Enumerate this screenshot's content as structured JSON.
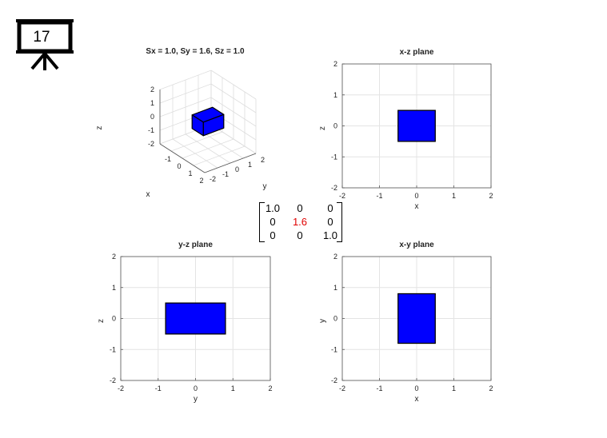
{
  "slide": {
    "number": "17"
  },
  "matrix": {
    "rows": [
      [
        "1.0",
        "0",
        "0"
      ],
      [
        "0",
        "1.6",
        "0"
      ],
      [
        "0",
        "0",
        "1.0"
      ]
    ],
    "highlight": {
      "row": 1,
      "col": 1,
      "color": "#e00000"
    }
  },
  "chart_data": [
    {
      "type": "3d-box",
      "title": "Sx = 1.0, Sy = 1.6, Sz = 1.0",
      "xlabel": "x",
      "ylabel": "y",
      "zlabel": "z",
      "xlim": [
        -2,
        2
      ],
      "ylim": [
        -2,
        2
      ],
      "zlim": [
        -2,
        2
      ],
      "xticks": [
        "-1",
        "0",
        "1",
        "2"
      ],
      "yticks": [
        "-2",
        "-1",
        "0",
        "1",
        "2"
      ],
      "zticks": [
        "2",
        "1",
        "0",
        "-1",
        "-2"
      ],
      "grid": true,
      "box": {
        "x": [
          -0.5,
          0.5
        ],
        "y": [
          -0.8,
          0.8
        ],
        "z": [
          -0.5,
          0.5
        ],
        "color": "#0000ff"
      }
    },
    {
      "type": "rect",
      "title": "x-z plane",
      "xlabel": "x",
      "ylabel": "z",
      "xlim": [
        -2,
        2
      ],
      "ylim": [
        -2,
        2
      ],
      "xticks": [
        "-2",
        "-1",
        "0",
        "1",
        "2"
      ],
      "yticks": [
        "2",
        "1",
        "0",
        "-1",
        "-2"
      ],
      "grid": true,
      "rect": {
        "x": [
          -0.5,
          0.5
        ],
        "y": [
          -0.5,
          0.5
        ],
        "color": "#0000ff"
      }
    },
    {
      "type": "rect",
      "title": "y-z plane",
      "xlabel": "y",
      "ylabel": "z",
      "xlim": [
        -2,
        2
      ],
      "ylim": [
        -2,
        2
      ],
      "xticks": [
        "-2",
        "-1",
        "0",
        "1",
        "2"
      ],
      "yticks": [
        "2",
        "1",
        "0",
        "-1",
        "-2"
      ],
      "grid": true,
      "rect": {
        "x": [
          -0.8,
          0.8
        ],
        "y": [
          -0.5,
          0.5
        ],
        "color": "#0000ff"
      }
    },
    {
      "type": "rect",
      "title": "x-y plane",
      "xlabel": "x",
      "ylabel": "y",
      "xlim": [
        -2,
        2
      ],
      "ylim": [
        -2,
        2
      ],
      "xticks": [
        "-2",
        "-1",
        "0",
        "1",
        "2"
      ],
      "yticks": [
        "2",
        "1",
        "0",
        "-1",
        "-2"
      ],
      "grid": true,
      "rect": {
        "x": [
          -0.5,
          0.5
        ],
        "y": [
          -0.8,
          0.8
        ],
        "color": "#0000ff"
      }
    }
  ]
}
